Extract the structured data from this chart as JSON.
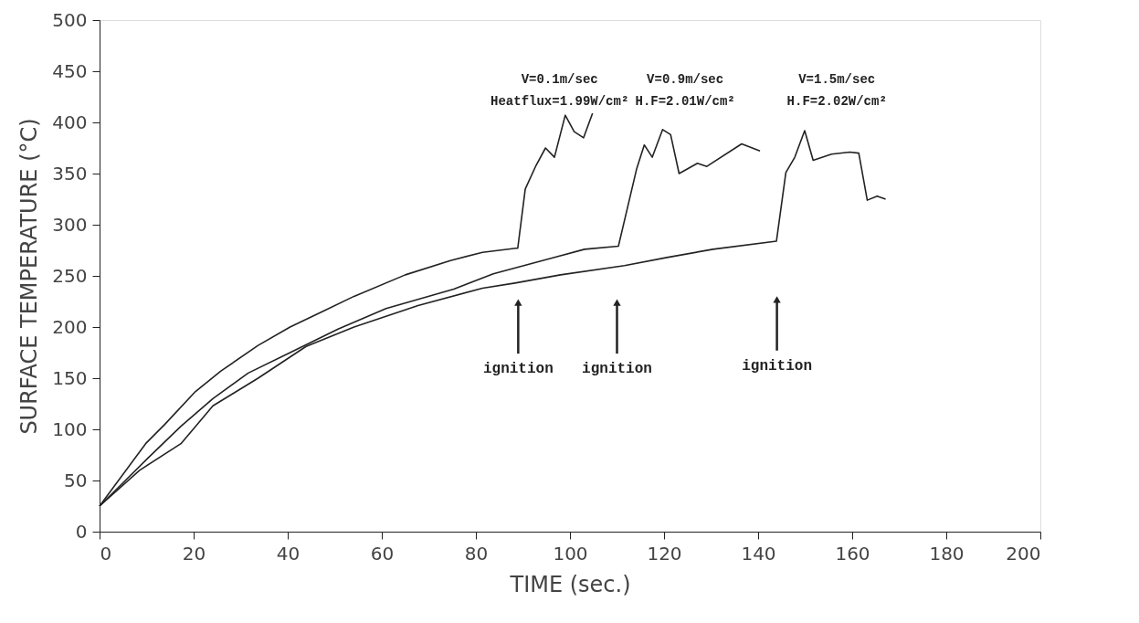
{
  "chart_data": {
    "type": "line",
    "xlabel": "TIME (sec.)",
    "ylabel": "SURFACE TEMPERATURE (°C)",
    "xlim": [
      0,
      200
    ],
    "ylim": [
      0,
      500
    ],
    "xticks": [
      0,
      20,
      40,
      60,
      80,
      100,
      120,
      140,
      160,
      180,
      200
    ],
    "yticks": [
      0,
      50,
      100,
      150,
      200,
      250,
      300,
      350,
      400,
      450,
      500
    ],
    "grid": false,
    "marker": "none",
    "line_style": "solid",
    "series": [
      {
        "name": "V=0.1m/sec\nHeatflux=1.99W/cm²",
        "color": "#222222",
        "x": [
          0,
          9.8,
          13.9,
          20.4,
          25.8,
          33.7,
          40.5,
          47.3,
          54.1,
          65,
          74.6,
          81.4,
          88.5,
          88.9,
          90.5,
          92.8,
          94.8,
          96.7,
          99,
          100.9,
          102.9,
          104.8
        ],
        "values": [
          25,
          86,
          105,
          137,
          157,
          182,
          200,
          215,
          230,
          251,
          265,
          273,
          277,
          277,
          335,
          358,
          375,
          366,
          407,
          391,
          385,
          409
        ]
      },
      {
        "name": "V=0.9m/sec\nH.F=2.01W/cm²",
        "color": "#222222",
        "x": [
          0,
          10.3,
          17.3,
          24.1,
          31.6,
          40.5,
          50.7,
          60.9,
          75.3,
          83.7,
          90.2,
          96.7,
          103.1,
          110.3,
          114.2,
          115.8,
          117.5,
          119.7,
          121.4,
          123.2,
          127.1,
          129.1,
          136.5,
          140.4
        ],
        "values": [
          25,
          72,
          103,
          130,
          155,
          175,
          198,
          218,
          237,
          252,
          260,
          268,
          276,
          279,
          355,
          378,
          366,
          393,
          388,
          350,
          360,
          357,
          379,
          372
        ]
      },
      {
        "name": "V=1.5m/sec\nH.F=2.02W/cm²",
        "color": "#222222",
        "x": [
          0,
          8.5,
          17.3,
          24.1,
          33.7,
          43.9,
          54.1,
          67.7,
          81.4,
          88.3,
          98,
          111.6,
          120.6,
          130.4,
          143.9,
          145.9,
          147.8,
          149.9,
          151.7,
          155.6,
          159.5,
          161.4,
          163.2,
          165.3,
          167.1
        ],
        "values": [
          25,
          60,
          86,
          123,
          150,
          181,
          200,
          221,
          238,
          243,
          251,
          260,
          268,
          276,
          284,
          351,
          366,
          392,
          363,
          369,
          371,
          370,
          324,
          328,
          325
        ]
      }
    ],
    "annotations": [
      {
        "text": "ignition",
        "x": 89,
        "y": 224
      },
      {
        "text": "ignition",
        "x": 110,
        "y": 224
      },
      {
        "text": "ignition",
        "x": 144,
        "y": 227
      }
    ]
  }
}
